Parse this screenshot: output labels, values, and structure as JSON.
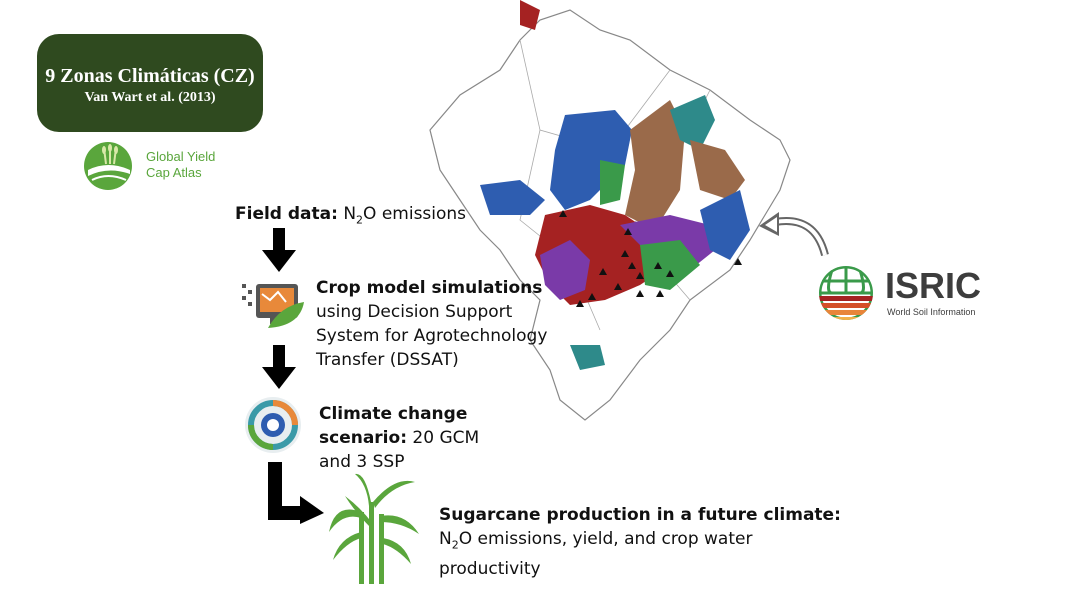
{
  "climate_zones": {
    "title": "9 Zonas Climáticas (CZ)",
    "citation": "Van Wart et al. (2013)"
  },
  "gyga_logo": {
    "line1": "Global Yield",
    "line2": "Cap Atlas"
  },
  "isric_logo": {
    "name": "ISRIC",
    "tagline": "World Soil Information"
  },
  "steps": {
    "field_data": {
      "label": "Field data:",
      "text_pre": " N",
      "sub": "2",
      "text_post": "O emissions"
    },
    "crop_model": {
      "label": "Crop model simulations",
      "line2": "using Decision Support",
      "line3": "System for Agrotechnology",
      "line4": "Transfer (DSSAT)"
    },
    "climate_change": {
      "label1": "Climate change",
      "label2": "scenario:",
      "text2": " 20 GCM",
      "line3": "and 3 SSP"
    },
    "outcome": {
      "label": "Sugarcane production  in a future climate:",
      "pre": "N",
      "sub": "2",
      "post": "O emissions, yield, and crop water",
      "line3": "productivity"
    }
  },
  "colors": {
    "cz_box": "#2f4a1f",
    "gyga_green": "#5aa63c",
    "isric_dark": "#3d3d3d",
    "map_blue": "#2e5db0",
    "map_red": "#a52222",
    "map_green": "#3a9a4a",
    "map_brown": "#9a6a4a",
    "map_purple": "#7a3aa8",
    "map_teal": "#2e8a8a"
  }
}
